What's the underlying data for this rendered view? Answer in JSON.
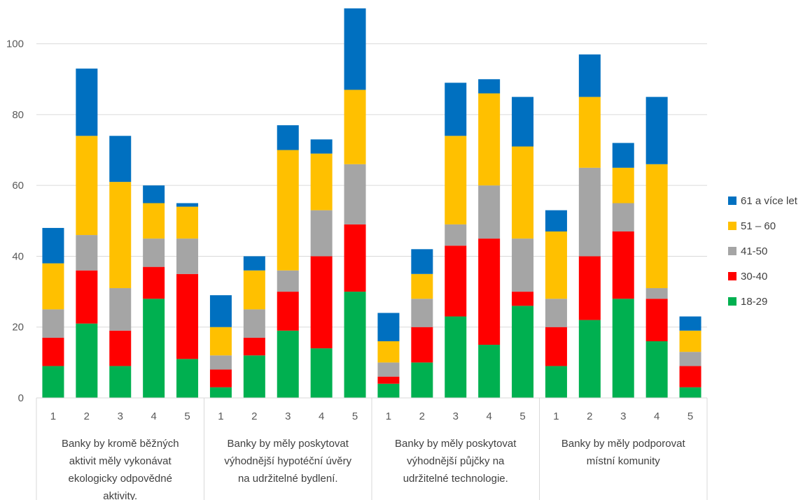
{
  "chart_data": {
    "type": "bar",
    "stacked": true,
    "groups": [
      {
        "lines": [
          "Banky by kromě běžných",
          "aktivit měly vykonávat",
          "ekologicky odpovědné",
          "aktivity."
        ]
      },
      {
        "lines": [
          "Banky by měly poskytovat",
          "výhodnější hypotéční úvěry",
          "na udržitelné bydlení."
        ]
      },
      {
        "lines": [
          "Banky by měly poskytovat",
          "výhodnější půjčky na",
          "udržitelné technologie."
        ]
      },
      {
        "lines": [
          "Banky by měly podporovat",
          "místní komunity"
        ]
      }
    ],
    "categories": [
      "1",
      "2",
      "3",
      "4",
      "5",
      "1",
      "2",
      "3",
      "4",
      "5",
      "1",
      "2",
      "3",
      "4",
      "5",
      "1",
      "2",
      "3",
      "4",
      "5"
    ],
    "series": [
      {
        "name": "18-29",
        "color": "#00b050",
        "values": [
          9,
          21,
          9,
          28,
          11,
          3,
          12,
          19,
          14,
          30,
          4,
          10,
          23,
          15,
          26,
          9,
          22,
          28,
          16,
          3
        ]
      },
      {
        "name": "30-40",
        "color": "#ff0000",
        "values": [
          8,
          15,
          10,
          9,
          24,
          5,
          5,
          11,
          26,
          19,
          2,
          10,
          20,
          30,
          4,
          11,
          18,
          19,
          12,
          6
        ]
      },
      {
        "name": "41-50",
        "color": "#a5a5a5",
        "values": [
          8,
          10,
          12,
          8,
          10,
          4,
          8,
          6,
          13,
          17,
          4,
          8,
          6,
          15,
          15,
          8,
          25,
          8,
          3,
          4
        ]
      },
      {
        "name": "51 – 60",
        "color": "#ffc000",
        "values": [
          13,
          28,
          30,
          10,
          9,
          8,
          11,
          34,
          16,
          21,
          6,
          7,
          25,
          26,
          26,
          19,
          20,
          10,
          35,
          6
        ]
      },
      {
        "name": "61 a více let",
        "color": "#0070c0",
        "values": [
          10,
          19,
          13,
          5,
          1,
          9,
          4,
          7,
          4,
          23,
          8,
          7,
          15,
          4,
          14,
          6,
          12,
          7,
          19,
          4
        ]
      }
    ],
    "yticks": [
      "0",
      "20",
      "40",
      "60",
      "80",
      "100"
    ],
    "ylim": [
      0,
      110
    ],
    "grid": true,
    "legend_position": "right"
  }
}
